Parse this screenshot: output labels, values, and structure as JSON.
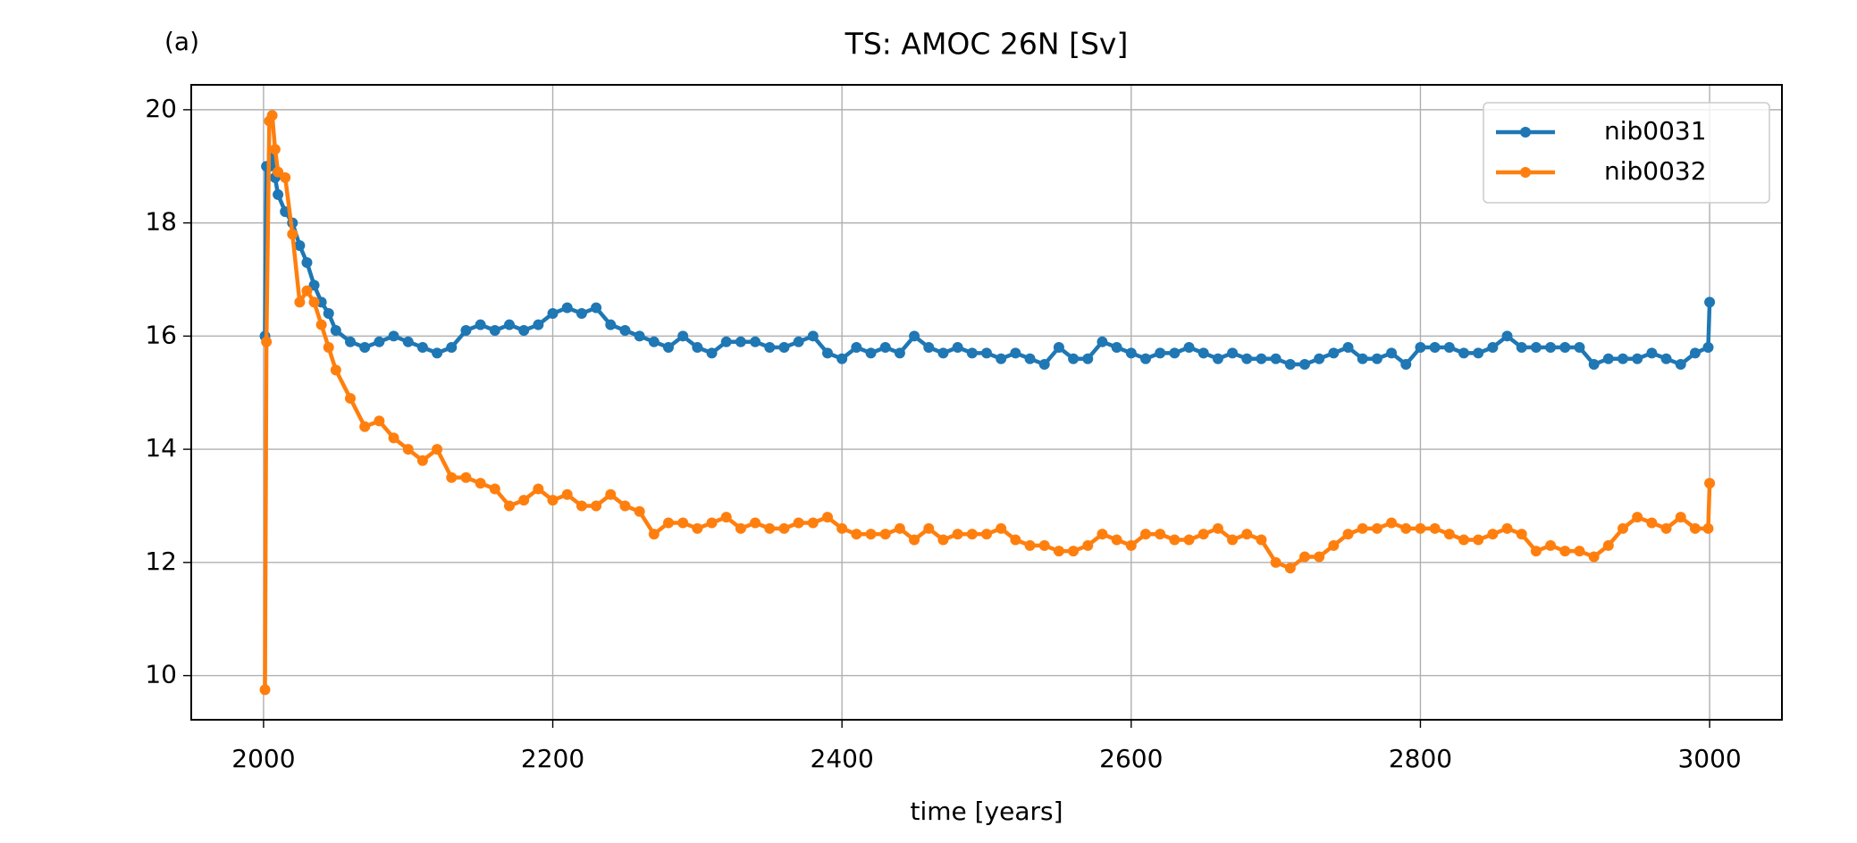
{
  "chart_data": {
    "type": "line",
    "title": "TS: AMOC 26N [Sv]",
    "panel_label": "(a)",
    "x_label": "time [years]",
    "x": [
      2001,
      2002,
      2004,
      2006,
      2008,
      2010,
      2015,
      2020,
      2025,
      2030,
      2035,
      2040,
      2045,
      2050,
      2060,
      2070,
      2080,
      2090,
      2100,
      2110,
      2120,
      2130,
      2140,
      2150,
      2160,
      2170,
      2180,
      2190,
      2200,
      2210,
      2220,
      2230,
      2240,
      2250,
      2260,
      2270,
      2280,
      2290,
      2300,
      2310,
      2320,
      2330,
      2340,
      2350,
      2360,
      2370,
      2380,
      2390,
      2400,
      2410,
      2420,
      2430,
      2440,
      2450,
      2460,
      2470,
      2480,
      2490,
      2500,
      2510,
      2520,
      2530,
      2540,
      2550,
      2560,
      2570,
      2580,
      2590,
      2600,
      2610,
      2620,
      2630,
      2640,
      2650,
      2660,
      2670,
      2680,
      2690,
      2700,
      2710,
      2720,
      2730,
      2740,
      2750,
      2760,
      2770,
      2780,
      2790,
      2800,
      2810,
      2820,
      2830,
      2840,
      2850,
      2860,
      2870,
      2880,
      2890,
      2900,
      2910,
      2920,
      2930,
      2940,
      2950,
      2960,
      2970,
      2980,
      2990,
      2999,
      3000
    ],
    "series": [
      {
        "name": "nib0031",
        "color": "#1f77b4",
        "values": [
          16.0,
          19.0,
          19.0,
          19.2,
          18.8,
          18.5,
          18.2,
          18.0,
          17.6,
          17.3,
          16.9,
          16.6,
          16.4,
          16.1,
          15.9,
          15.8,
          15.9,
          16.0,
          15.9,
          15.8,
          15.7,
          15.8,
          16.1,
          16.2,
          16.1,
          16.2,
          16.1,
          16.2,
          16.4,
          16.5,
          16.4,
          16.5,
          16.2,
          16.1,
          16.0,
          15.9,
          15.8,
          16.0,
          15.8,
          15.7,
          15.9,
          15.9,
          15.9,
          15.8,
          15.8,
          15.9,
          16.0,
          15.7,
          15.6,
          15.8,
          15.7,
          15.8,
          15.7,
          16.0,
          15.8,
          15.7,
          15.8,
          15.7,
          15.7,
          15.6,
          15.7,
          15.6,
          15.5,
          15.8,
          15.6,
          15.6,
          15.9,
          15.8,
          15.7,
          15.6,
          15.7,
          15.7,
          15.8,
          15.7,
          15.6,
          15.7,
          15.6,
          15.6,
          15.6,
          15.5,
          15.5,
          15.6,
          15.7,
          15.8,
          15.6,
          15.6,
          15.7,
          15.5,
          15.8,
          15.8,
          15.8,
          15.7,
          15.7,
          15.8,
          16.0,
          15.8,
          15.8,
          15.8,
          15.8,
          15.8,
          15.5,
          15.6,
          15.6,
          15.6,
          15.7,
          15.6,
          15.5,
          15.7,
          15.8,
          16.6
        ]
      },
      {
        "name": "nib0032",
        "color": "#ff7f0e",
        "values": [
          9.75,
          15.9,
          19.8,
          19.9,
          19.3,
          18.9,
          18.8,
          17.8,
          16.6,
          16.8,
          16.6,
          16.2,
          15.8,
          15.4,
          14.9,
          14.4,
          14.5,
          14.2,
          14.0,
          13.8,
          14.0,
          13.5,
          13.5,
          13.4,
          13.3,
          13.0,
          13.1,
          13.3,
          13.1,
          13.2,
          13.0,
          13.0,
          13.2,
          13.0,
          12.9,
          12.5,
          12.7,
          12.7,
          12.6,
          12.7,
          12.8,
          12.6,
          12.7,
          12.6,
          12.6,
          12.7,
          12.7,
          12.8,
          12.6,
          12.5,
          12.5,
          12.5,
          12.6,
          12.4,
          12.6,
          12.4,
          12.5,
          12.5,
          12.5,
          12.6,
          12.4,
          12.3,
          12.3,
          12.2,
          12.2,
          12.3,
          12.5,
          12.4,
          12.3,
          12.5,
          12.5,
          12.4,
          12.4,
          12.5,
          12.6,
          12.4,
          12.5,
          12.4,
          12.0,
          11.9,
          12.1,
          12.1,
          12.3,
          12.5,
          12.6,
          12.6,
          12.7,
          12.6,
          12.6,
          12.6,
          12.5,
          12.4,
          12.4,
          12.5,
          12.6,
          12.5,
          12.2,
          12.3,
          12.2,
          12.2,
          12.1,
          12.3,
          12.6,
          12.8,
          12.7,
          12.6,
          12.8,
          12.6,
          12.6,
          13.4
        ]
      }
    ],
    "xlim": [
      1950,
      3050
    ],
    "ylim": [
      9.22,
      20.44
    ],
    "xticks": [
      2000,
      2200,
      2400,
      2600,
      2800,
      3000
    ],
    "yticks": [
      10,
      12,
      14,
      16,
      18,
      20
    ],
    "grid": true,
    "legend": "upper right"
  }
}
